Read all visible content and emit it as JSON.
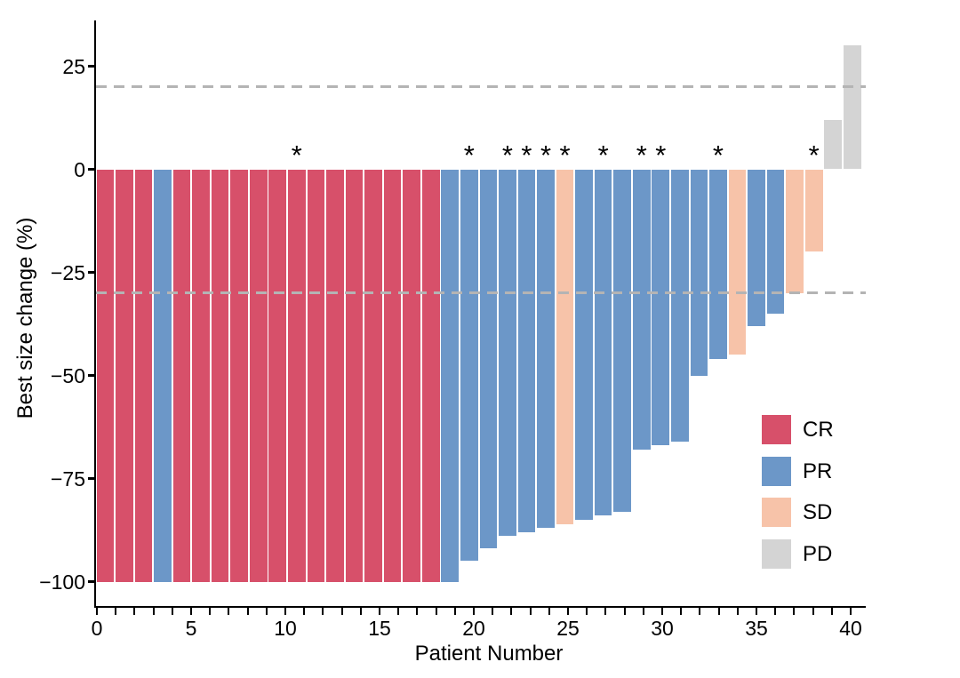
{
  "chart_data": {
    "type": "bar",
    "subtype": "waterfall",
    "title": "",
    "xlabel": "Patient Number",
    "ylabel": "Best size change (%)",
    "ylim": [
      -100,
      30
    ],
    "grid": false,
    "annotation_symbol": "*",
    "colors": {
      "CR": "#d7506a",
      "PR": "#6c97c8",
      "SD": "#f7c3a9",
      "PD": "#d4d4d4",
      "reference_line": "#b4b4b4",
      "axis": "#000000"
    },
    "y_axis": {
      "title": "Best size change (%)",
      "ticks": [
        {
          "value": 25,
          "label": "25"
        },
        {
          "value": 0,
          "label": "0"
        },
        {
          "value": -25,
          "label": "−25"
        },
        {
          "value": -50,
          "label": "−50"
        },
        {
          "value": -75,
          "label": "−75"
        },
        {
          "value": -100,
          "label": "−100"
        }
      ]
    },
    "x_axis": {
      "title": "Patient Number",
      "major_ticks": [
        {
          "value": 0,
          "label": "0"
        },
        {
          "value": 5,
          "label": "5"
        },
        {
          "value": 10,
          "label": "10"
        },
        {
          "value": 15,
          "label": "15"
        },
        {
          "value": 20,
          "label": "20"
        },
        {
          "value": 25,
          "label": "25"
        },
        {
          "value": 30,
          "label": "30"
        },
        {
          "value": 35,
          "label": "35"
        },
        {
          "value": 40,
          "label": "40"
        }
      ],
      "minor_tick_min": 0,
      "minor_tick_max": 40,
      "minor_tick_step": 1
    },
    "reference_lines": [
      {
        "y": 20,
        "style": "dashed"
      },
      {
        "y": -30,
        "style": "dashed"
      }
    ],
    "legend": {
      "position": "inside-right",
      "entries": [
        {
          "label": "CR",
          "color_key": "CR"
        },
        {
          "label": "PR",
          "color_key": "PR"
        },
        {
          "label": "SD",
          "color_key": "SD"
        },
        {
          "label": "PD",
          "color_key": "PD"
        }
      ]
    },
    "patients": [
      {
        "patient": 1,
        "value": -100,
        "response": "CR",
        "annotated": false
      },
      {
        "patient": 2,
        "value": -100,
        "response": "CR",
        "annotated": false
      },
      {
        "patient": 3,
        "value": -100,
        "response": "CR",
        "annotated": false
      },
      {
        "patient": 4,
        "value": -100,
        "response": "PR",
        "annotated": false
      },
      {
        "patient": 5,
        "value": -100,
        "response": "CR",
        "annotated": false
      },
      {
        "patient": 6,
        "value": -100,
        "response": "CR",
        "annotated": false
      },
      {
        "patient": 7,
        "value": -100,
        "response": "CR",
        "annotated": false
      },
      {
        "patient": 8,
        "value": -100,
        "response": "CR",
        "annotated": false
      },
      {
        "patient": 9,
        "value": -100,
        "response": "CR",
        "annotated": false
      },
      {
        "patient": 10,
        "value": -100,
        "response": "CR",
        "annotated": false
      },
      {
        "patient": 11,
        "value": -100,
        "response": "CR",
        "annotated": true
      },
      {
        "patient": 12,
        "value": -100,
        "response": "CR",
        "annotated": false
      },
      {
        "patient": 13,
        "value": -100,
        "response": "CR",
        "annotated": false
      },
      {
        "patient": 14,
        "value": -100,
        "response": "CR",
        "annotated": false
      },
      {
        "patient": 15,
        "value": -100,
        "response": "CR",
        "annotated": false
      },
      {
        "patient": 16,
        "value": -100,
        "response": "CR",
        "annotated": false
      },
      {
        "patient": 17,
        "value": -100,
        "response": "CR",
        "annotated": false
      },
      {
        "patient": 18,
        "value": -100,
        "response": "CR",
        "annotated": false
      },
      {
        "patient": 19,
        "value": -100,
        "response": "PR",
        "annotated": false
      },
      {
        "patient": 20,
        "value": -95,
        "response": "PR",
        "annotated": true
      },
      {
        "patient": 21,
        "value": -92,
        "response": "PR",
        "annotated": false
      },
      {
        "patient": 22,
        "value": -89,
        "response": "PR",
        "annotated": true
      },
      {
        "patient": 23,
        "value": -88,
        "response": "PR",
        "annotated": true
      },
      {
        "patient": 24,
        "value": -87,
        "response": "PR",
        "annotated": true
      },
      {
        "patient": 25,
        "value": -86,
        "response": "SD",
        "annotated": true
      },
      {
        "patient": 26,
        "value": -85,
        "response": "PR",
        "annotated": false
      },
      {
        "patient": 27,
        "value": -84,
        "response": "PR",
        "annotated": true
      },
      {
        "patient": 28,
        "value": -83,
        "response": "PR",
        "annotated": false
      },
      {
        "patient": 29,
        "value": -68,
        "response": "PR",
        "annotated": true
      },
      {
        "patient": 30,
        "value": -67,
        "response": "PR",
        "annotated": true
      },
      {
        "patient": 31,
        "value": -66,
        "response": "PR",
        "annotated": false
      },
      {
        "patient": 32,
        "value": -50,
        "response": "PR",
        "annotated": false
      },
      {
        "patient": 33,
        "value": -46,
        "response": "PR",
        "annotated": true
      },
      {
        "patient": 34,
        "value": -45,
        "response": "SD",
        "annotated": false
      },
      {
        "patient": 35,
        "value": -38,
        "response": "PR",
        "annotated": false
      },
      {
        "patient": 36,
        "value": -35,
        "response": "PR",
        "annotated": false
      },
      {
        "patient": 37,
        "value": -30,
        "response": "SD",
        "annotated": false
      },
      {
        "patient": 38,
        "value": -20,
        "response": "SD",
        "annotated": true
      },
      {
        "patient": 39,
        "value": 12,
        "response": "PD",
        "annotated": false
      },
      {
        "patient": 40,
        "value": 30,
        "response": "PD",
        "annotated": false
      }
    ]
  }
}
